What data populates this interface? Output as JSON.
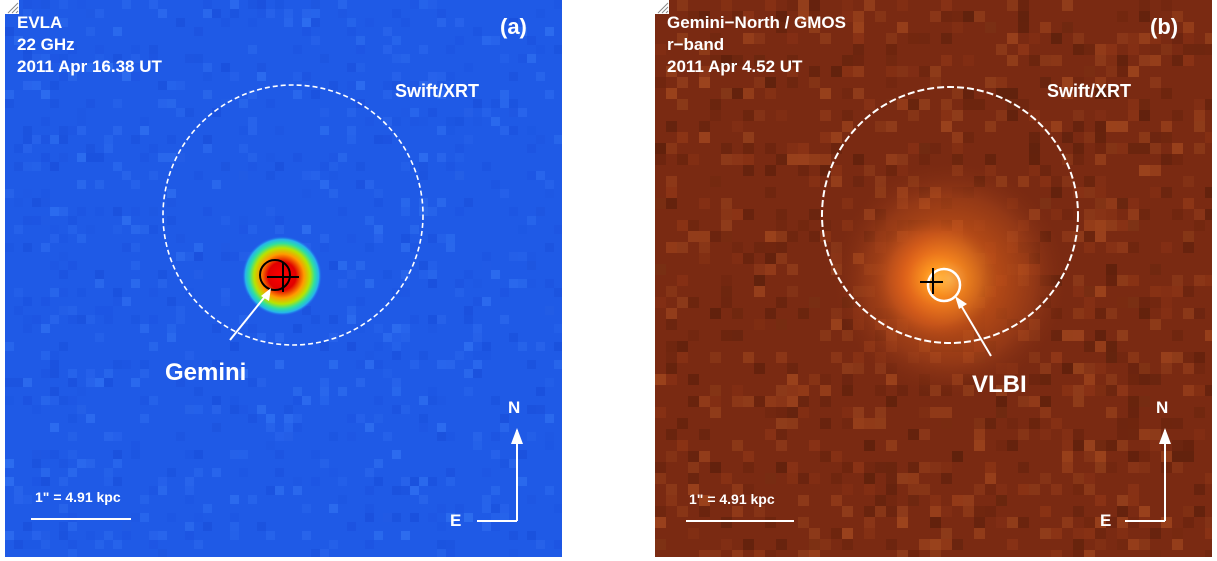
{
  "colors": {
    "panel_a_background": "#1f5ae6",
    "panel_b_background": "#7a2a12",
    "annotation": "#ffffff"
  },
  "panels": [
    {
      "id": "a",
      "tag": "(a)",
      "meta": [
        "EVLA",
        "22 GHz",
        "2011 Apr 16.38 UT"
      ],
      "region_label": "Swift/XRT",
      "source_label": "Gemini",
      "scale_label": "1\" = 4.91 kpc",
      "north_label": "N",
      "east_label": "E"
    },
    {
      "id": "b",
      "tag": "(b)",
      "meta": [
        "Gemini−North / GMOS",
        "r−band",
        "2011 Apr 4.52 UT"
      ],
      "region_label": "Swift/XRT",
      "source_label": "VLBI",
      "scale_label": "1\" = 4.91 kpc",
      "north_label": "N",
      "east_label": "E"
    }
  ]
}
